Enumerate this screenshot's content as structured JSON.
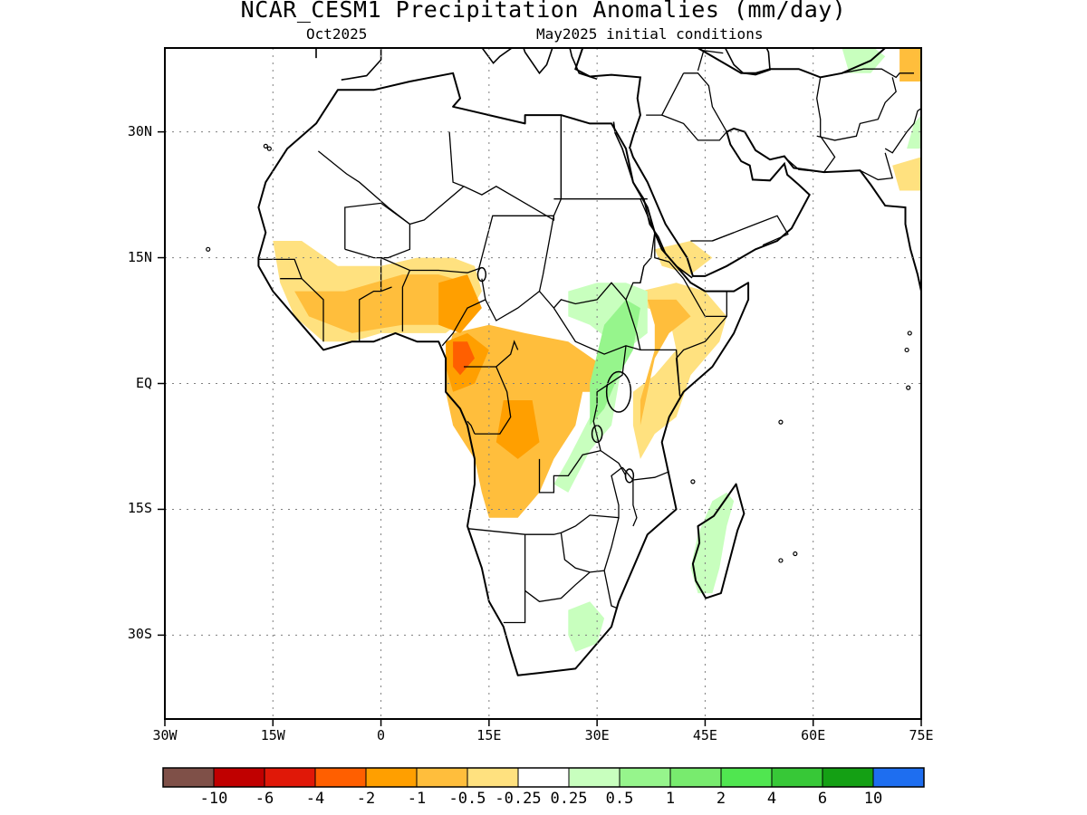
{
  "header": {
    "title": "NCAR_CESM1 Precipitation Anomalies (mm/day)",
    "valid_month": "Oct2025",
    "init_conditions": "May2025 initial conditions"
  },
  "map": {
    "lon_range": [
      -30,
      75
    ],
    "lat_range": [
      -40,
      40
    ],
    "lat_labels": [
      {
        "lat": 30,
        "text": "30N"
      },
      {
        "lat": 15,
        "text": "15N"
      },
      {
        "lat": 0,
        "text": "EQ"
      },
      {
        "lat": -15,
        "text": "15S"
      },
      {
        "lat": -30,
        "text": "30S"
      }
    ],
    "lon_labels": [
      {
        "lon": -30,
        "text": "30W"
      },
      {
        "lon": -15,
        "text": "15W"
      },
      {
        "lon": 0,
        "text": "0"
      },
      {
        "lon": 15,
        "text": "15E"
      },
      {
        "lon": 30,
        "text": "30E"
      },
      {
        "lon": 45,
        "text": "45E"
      },
      {
        "lon": 60,
        "text": "60E"
      },
      {
        "lon": 75,
        "text": "75E"
      }
    ],
    "anomaly_regions": [
      {
        "name": "West Africa Sahel belt",
        "class": "-0.5",
        "lonlat": [
          [
            -15,
            17
          ],
          [
            -11,
            17
          ],
          [
            -6,
            14
          ],
          [
            0,
            14
          ],
          [
            5,
            15
          ],
          [
            10,
            15
          ],
          [
            13,
            14
          ],
          [
            14,
            11
          ],
          [
            12,
            8
          ],
          [
            9,
            6
          ],
          [
            5,
            6
          ],
          [
            0,
            6
          ],
          [
            -4,
            5
          ],
          [
            -8,
            5
          ],
          [
            -12,
            8
          ],
          [
            -14,
            12
          ]
        ]
      },
      {
        "name": "West Africa core",
        "class": "-1",
        "lonlat": [
          [
            -12,
            11
          ],
          [
            -5,
            11
          ],
          [
            3,
            13
          ],
          [
            8,
            13
          ],
          [
            12,
            12
          ],
          [
            12,
            9
          ],
          [
            8,
            7
          ],
          [
            3,
            7
          ],
          [
            -4,
            6
          ],
          [
            -10,
            8
          ]
        ]
      },
      {
        "name": "Central Africa / Congo",
        "class": "-1",
        "lonlat": [
          [
            10,
            6
          ],
          [
            15,
            7
          ],
          [
            20,
            6
          ],
          [
            26,
            5
          ],
          [
            31,
            2
          ],
          [
            31,
            -1
          ],
          [
            28,
            -1
          ],
          [
            27,
            -5
          ],
          [
            24,
            -9
          ],
          [
            22,
            -13
          ],
          [
            19,
            -16
          ],
          [
            15,
            -16
          ],
          [
            14,
            -13
          ],
          [
            13,
            -9
          ],
          [
            10,
            -5
          ],
          [
            9,
            -1
          ],
          [
            9,
            3
          ]
        ]
      },
      {
        "name": "Cameroon core",
        "class": "-2",
        "lonlat": [
          [
            9,
            5
          ],
          [
            12,
            6
          ],
          [
            15,
            4
          ],
          [
            13,
            0
          ],
          [
            10,
            -1
          ],
          [
            9,
            2
          ]
        ]
      },
      {
        "name": "Central African Republic core",
        "class": "-2",
        "lonlat": [
          [
            8,
            12
          ],
          [
            12,
            13
          ],
          [
            14,
            9
          ],
          [
            11,
            6
          ],
          [
            8,
            7
          ]
        ]
      },
      {
        "name": "Southeast Congo core",
        "class": "-2",
        "lonlat": [
          [
            17,
            -2
          ],
          [
            21,
            -2
          ],
          [
            22,
            -7
          ],
          [
            19,
            -9
          ],
          [
            16,
            -7
          ]
        ]
      },
      {
        "name": "Cameroon peak",
        "class": "-4",
        "lonlat": [
          [
            10,
            5
          ],
          [
            12,
            5
          ],
          [
            13,
            3
          ],
          [
            11,
            1
          ],
          [
            10,
            2
          ]
        ]
      },
      {
        "name": "Horn of Africa",
        "class": "-0.5",
        "lonlat": [
          [
            36,
            11
          ],
          [
            41,
            12
          ],
          [
            45,
            11
          ],
          [
            48,
            8
          ],
          [
            47,
            5
          ],
          [
            43,
            1
          ],
          [
            41,
            -4
          ],
          [
            38,
            -6
          ],
          [
            36,
            -9
          ],
          [
            35,
            -5
          ],
          [
            35,
            -1
          ],
          [
            38,
            1
          ],
          [
            41,
            4
          ],
          [
            40,
            8
          ],
          [
            37,
            9
          ]
        ]
      },
      {
        "name": "Horn of Africa core",
        "class": "-1",
        "lonlat": [
          [
            37,
            10
          ],
          [
            41,
            10
          ],
          [
            43,
            8
          ],
          [
            40,
            6
          ],
          [
            38,
            3
          ],
          [
            37,
            -1
          ],
          [
            36,
            -5
          ],
          [
            36,
            -2
          ],
          [
            38,
            4
          ],
          [
            38,
            7
          ]
        ]
      },
      {
        "name": "Yemen / Arabia south",
        "class": "-0.5",
        "lonlat": [
          [
            38,
            16
          ],
          [
            43,
            17
          ],
          [
            46,
            15
          ],
          [
            43,
            13
          ],
          [
            39,
            14
          ]
        ]
      },
      {
        "name": "Iran east",
        "class": "-1",
        "lonlat": [
          [
            72,
            40
          ],
          [
            75,
            40
          ],
          [
            75,
            36
          ],
          [
            72,
            36
          ]
        ]
      },
      {
        "name": "Pakistan",
        "class": "-0.5",
        "lonlat": [
          [
            71,
            26
          ],
          [
            75,
            27
          ],
          [
            75,
            23
          ],
          [
            72,
            23
          ]
        ]
      },
      {
        "name": "Sudan / South Sudan",
        "class": "0.5",
        "lonlat": [
          [
            26,
            11
          ],
          [
            30,
            12
          ],
          [
            34,
            12
          ],
          [
            37,
            11
          ],
          [
            37,
            6
          ],
          [
            34,
            4
          ],
          [
            33,
            0
          ],
          [
            32,
            -5
          ],
          [
            29,
            -8
          ],
          [
            26,
            -13
          ],
          [
            24,
            -12
          ],
          [
            26,
            -9
          ],
          [
            29,
            -4
          ],
          [
            30,
            2
          ],
          [
            32,
            5
          ],
          [
            29,
            7
          ],
          [
            26,
            8
          ]
        ]
      },
      {
        "name": "East Africa highlands",
        "class": "1",
        "lonlat": [
          [
            31,
            7
          ],
          [
            34,
            10
          ],
          [
            36,
            9
          ],
          [
            35,
            4
          ],
          [
            33,
            1
          ],
          [
            31,
            -3
          ],
          [
            29,
            -5
          ],
          [
            29,
            0
          ]
        ]
      },
      {
        "name": "Madagascar",
        "class": "0.5",
        "lonlat": [
          [
            46,
            -14
          ],
          [
            48,
            -13
          ],
          [
            49,
            -14
          ],
          [
            48,
            -17
          ],
          [
            47,
            -22
          ],
          [
            46,
            -25
          ],
          [
            44,
            -25
          ],
          [
            43,
            -22
          ],
          [
            44,
            -18
          ]
        ]
      },
      {
        "name": "South Africa east",
        "class": "0.5",
        "lonlat": [
          [
            26,
            -27
          ],
          [
            29,
            -26
          ],
          [
            31,
            -28
          ],
          [
            30,
            -31
          ],
          [
            27,
            -32
          ],
          [
            26,
            -30
          ]
        ]
      },
      {
        "name": "Iran north",
        "class": "0.5",
        "lonlat": [
          [
            64,
            40
          ],
          [
            67,
            41
          ],
          [
            70,
            39
          ],
          [
            68,
            37
          ],
          [
            65,
            37
          ]
        ]
      },
      {
        "name": "India northwest",
        "class": "0.5",
        "lonlat": [
          [
            74,
            31
          ],
          [
            75,
            32
          ],
          [
            75,
            28
          ],
          [
            73,
            28
          ]
        ]
      }
    ]
  },
  "colorbar": {
    "colors": [
      "#7f5048",
      "#c00000",
      "#e01808",
      "#ff5f00",
      "#ff9f00",
      "#ffbe3c",
      "#ffe17f",
      "#ffffff",
      "#c8ffbe",
      "#96f58c",
      "#78eb6e",
      "#50e650",
      "#37c837",
      "#14a014",
      "#1e6ef0"
    ],
    "labels": [
      "-10",
      "-6",
      "-4",
      "-2",
      "-1",
      "-0.5",
      "-0.25",
      "0.25",
      "0.5",
      "1",
      "2",
      "4",
      "6",
      "10"
    ],
    "class_colors": {
      "-4": "#ff5f00",
      "-2": "#ff9f00",
      "-1": "#ffbe3c",
      "-0.5": "#ffe17f",
      "0.5": "#c8ffbe",
      "1": "#96f58c"
    }
  }
}
